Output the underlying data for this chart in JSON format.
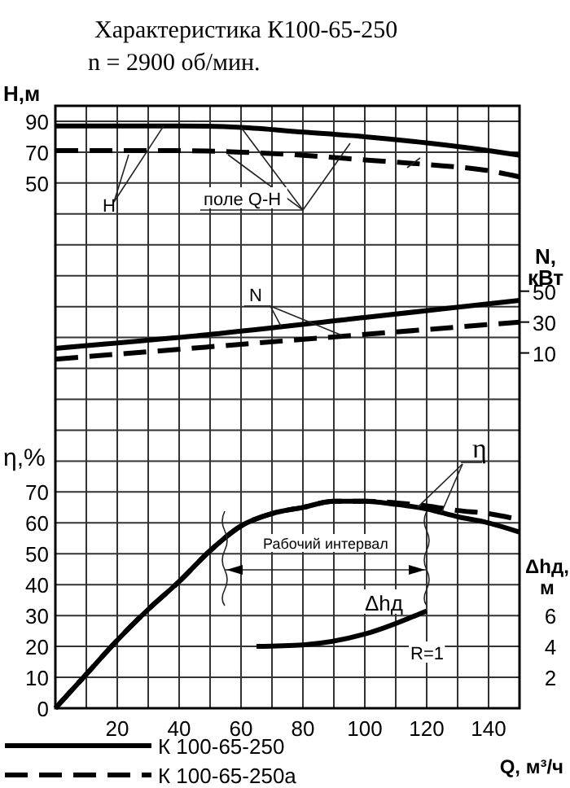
{
  "chart_data": [
    {
      "type": "line",
      "title": "Характеристика К100-65-250",
      "subtitle": "n = 2900 об/мин.",
      "ylabel": "H,м",
      "xlim": [
        0,
        150
      ],
      "ylim": [
        -290,
        100
      ],
      "yticks": [
        50,
        70,
        90
      ],
      "tick_labels": "y",
      "marker": "none",
      "series": [
        {
          "color": "#000000",
          "line_style": "solid",
          "x": [
            0,
            20,
            40,
            60,
            80,
            100,
            120,
            140,
            150
          ],
          "values": [
            87,
            87,
            87,
            86,
            83,
            80,
            76,
            71,
            68
          ]
        },
        {
          "color": "#000000",
          "line_style": "dashed",
          "x": [
            0,
            20,
            40,
            60,
            80,
            100,
            120,
            140,
            150
          ],
          "values": [
            71,
            71,
            71,
            70,
            68,
            65,
            62,
            58,
            54
          ]
        }
      ],
      "annotations": [
        {
          "text": "H",
          "x": 35,
          "y": 87
        },
        {
          "text": "поле Q-H",
          "x": 60,
          "y": 86
        }
      ]
    },
    {
      "type": "line",
      "ylabel": "N, кВт",
      "xlim": [
        0,
        150
      ],
      "ylim": [
        -220,
        170
      ],
      "yticks": [
        10,
        30,
        50
      ],
      "tick_labels": "y",
      "marker": "none",
      "series": [
        {
          "color": "#000000",
          "line_style": "solid",
          "x": [
            0,
            50,
            100,
            150
          ],
          "values": [
            13,
            22,
            33,
            44
          ]
        },
        {
          "color": "#000000",
          "line_style": "dashed",
          "x": [
            0,
            50,
            100,
            150
          ],
          "values": [
            6,
            14,
            22,
            30
          ]
        }
      ],
      "annotations": [
        {
          "text": "N",
          "x": 73,
          "y": 27
        }
      ]
    },
    {
      "type": "line",
      "xlabel": "Q, м³/ч",
      "ylabel": "η,%",
      "xlim": [
        0,
        150
      ],
      "xticks": [
        {
          "value": 10,
          "label": null
        },
        20,
        {
          "value": 30,
          "label": null
        },
        40,
        {
          "value": 50,
          "label": null
        },
        60,
        {
          "value": 70,
          "label": null
        },
        80,
        {
          "value": 90,
          "label": null
        },
        100,
        {
          "value": 110,
          "label": null
        },
        120,
        {
          "value": 130,
          "label": null
        },
        140,
        {
          "value": 150,
          "label": null
        }
      ],
      "ylim": [
        0,
        195
      ],
      "yticks": [
        0,
        10,
        20,
        30,
        40,
        50,
        60,
        70,
        {
          "value": 80,
          "label": null
        },
        {
          "value": 90,
          "label": null
        },
        {
          "value": 100,
          "label": null
        },
        {
          "value": 110,
          "label": null
        },
        {
          "value": 120,
          "label": null
        },
        {
          "value": 130,
          "label": null
        },
        {
          "value": 140,
          "label": null
        },
        {
          "value": 150,
          "label": null
        },
        {
          "value": 160,
          "label": null
        },
        {
          "value": 170,
          "label": null
        },
        {
          "value": 180,
          "label": null
        },
        {
          "value": 190,
          "label": null
        }
      ],
      "grid": true,
      "legend": "bottom left",
      "marker": "none",
      "series": [
        {
          "name": "К 100-65-250",
          "color": "#000000",
          "line_style": "solid",
          "x": [
            0,
            10,
            20,
            30,
            40,
            50,
            60,
            70,
            80,
            90,
            100,
            110,
            120,
            130,
            140,
            150
          ],
          "values": [
            0,
            11,
            22,
            32,
            41,
            51,
            59,
            63,
            65,
            67,
            67,
            66,
            64.5,
            62,
            60,
            57
          ]
        },
        {
          "name": "К 100-65-250а",
          "color": "#000000",
          "line_style": "dashed",
          "x": [
            0,
            10,
            20,
            30,
            40,
            50,
            60,
            70,
            80,
            90,
            100,
            110,
            120,
            130,
            140,
            150
          ],
          "values": [
            0,
            11,
            22,
            32,
            41,
            51,
            59,
            63,
            65,
            67,
            67,
            66.5,
            65.5,
            64,
            63,
            61
          ]
        }
      ],
      "annotations": [
        {
          "text": "η",
          "x": 117,
          "y": 65
        },
        "Рабочий интервал"
      ]
    },
    {
      "type": "line",
      "ylabel": "Δhд, м",
      "xlim": [
        0,
        150
      ],
      "ylim": [
        0,
        39
      ],
      "yticks": [
        2,
        4,
        6
      ],
      "tick_labels": "y",
      "marker": "none",
      "series": [
        {
          "color": "#000000",
          "line_style": "solid",
          "x": [
            65,
            80,
            100,
            120
          ],
          "values": [
            4,
            4.1,
            4.8,
            6.3
          ]
        }
      ],
      "annotations": [
        "Δhд",
        "R=1"
      ]
    }
  ]
}
